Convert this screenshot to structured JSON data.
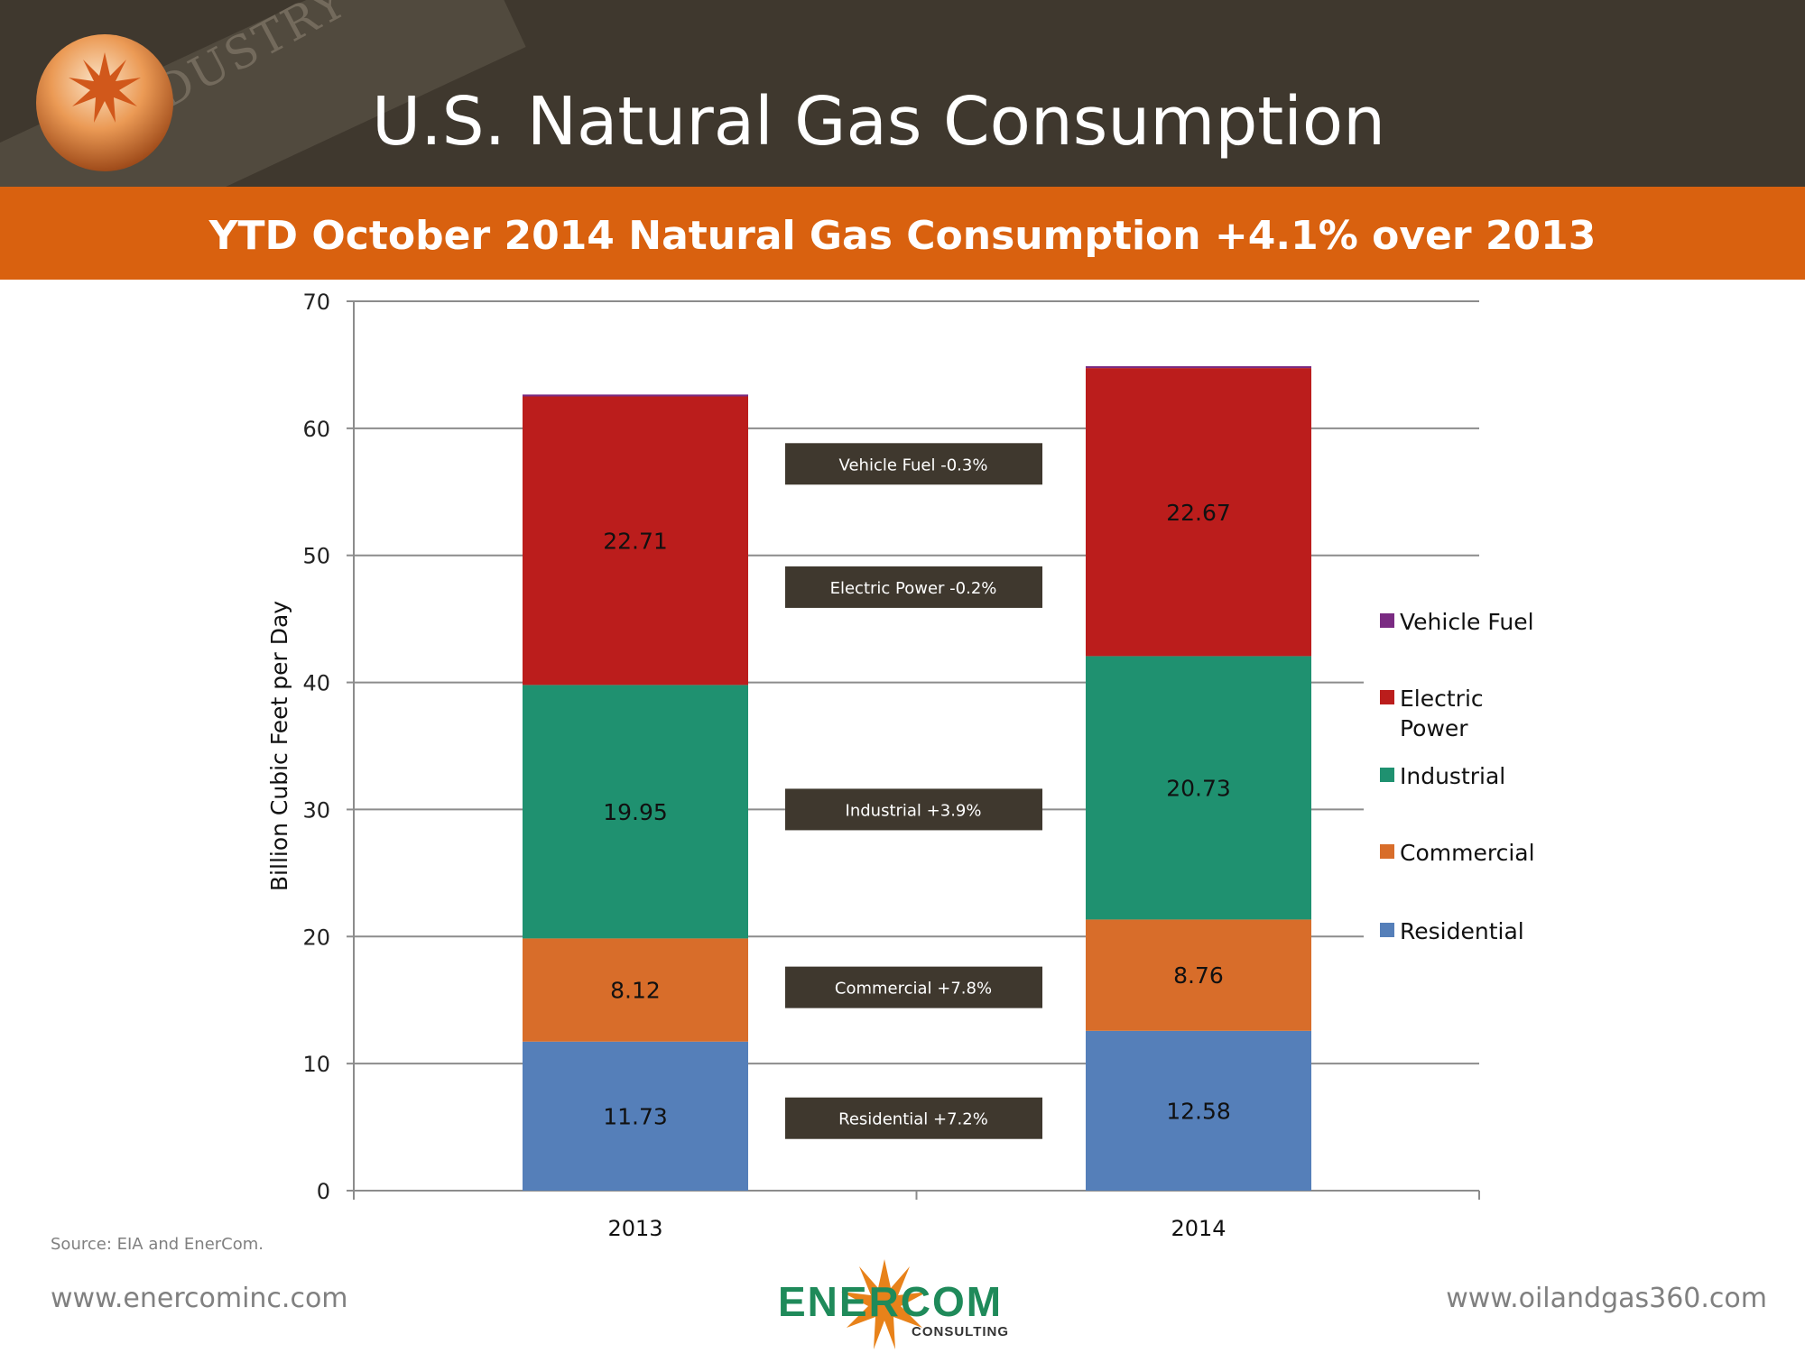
{
  "header": {
    "title": "U.S. Natural Gas Consumption",
    "watermark": "INDUSTRY"
  },
  "subtitle": "YTD October 2014 Natural Gas Consumption +4.1% over 2013",
  "footer": {
    "source": "Source: EIA and EnerCom.",
    "left_url": "www.enercominc.com",
    "right_url": "www.oilandgas360.com",
    "logo_text": "ENERCOM",
    "logo_sub": "CONSULTING",
    "logo_mark": "®"
  },
  "chart_data": {
    "type": "bar",
    "stacked": true,
    "categories": [
      "2013",
      "2014"
    ],
    "ylabel": "Billion Cubic Feet per Day",
    "ylim": [
      0,
      70
    ],
    "yticks": [
      "0",
      "10",
      "20",
      "30",
      "40",
      "50",
      "60",
      "70"
    ],
    "grid": true,
    "legend_position": "right",
    "series": [
      {
        "name": "Residential",
        "color": "#557fb9",
        "values": [
          11.73,
          12.58
        ],
        "labels": [
          "11.73",
          "12.58"
        ]
      },
      {
        "name": "Commercial",
        "color": "#d86d2a",
        "values": [
          8.12,
          8.76
        ],
        "labels": [
          "8.12",
          "8.76"
        ]
      },
      {
        "name": "Industrial",
        "color": "#1f9170",
        "values": [
          19.95,
          20.73
        ],
        "labels": [
          "19.95",
          "20.73"
        ]
      },
      {
        "name": "Electric Power",
        "color": "#bb1d1c",
        "values": [
          22.71,
          22.67
        ],
        "labels": [
          "22.71",
          "22.67"
        ]
      },
      {
        "name": "Vehicle Fuel",
        "color": "#7a2b82",
        "values": [
          0.15,
          0.15
        ],
        "labels": [
          "",
          ""
        ]
      }
    ],
    "legend": [
      [
        "Vehicle Fuel"
      ],
      [
        "Electric",
        "Power"
      ],
      [
        "Industrial"
      ],
      [
        "Commercial"
      ],
      [
        "Residential"
      ]
    ],
    "legend_colors": [
      "#7a2b82",
      "#bb1d1c",
      "#1f9170",
      "#d86d2a",
      "#557fb9"
    ],
    "annotations": [
      {
        "text": "Vehicle Fuel -0.3%",
        "y": 57.2
      },
      {
        "text": "Electric Power -0.2%",
        "y": 47.5
      },
      {
        "text": "Industrial  +3.9%",
        "y": 30.0
      },
      {
        "text": "Commercial +7.8%",
        "y": 16.0
      },
      {
        "text": "Residential  +7.2%",
        "y": 5.7
      }
    ]
  }
}
